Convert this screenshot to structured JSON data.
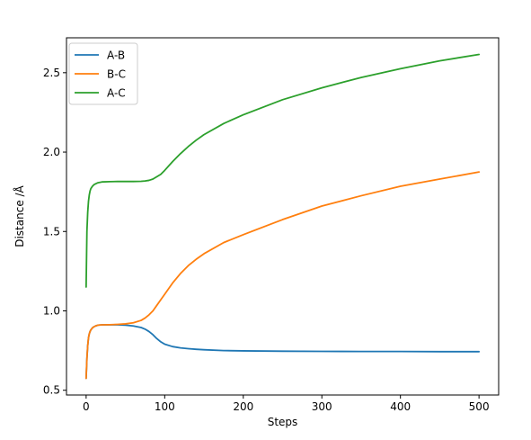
{
  "chart_data": {
    "type": "line",
    "xlabel": "Steps",
    "ylabel": "Distance /Å",
    "xlim": [
      -25,
      525
    ],
    "ylim": [
      0.47,
      2.72
    ],
    "xticks": [
      0,
      100,
      200,
      300,
      400,
      500
    ],
    "yticks": [
      0.5,
      1.0,
      1.5,
      2.0,
      2.5
    ],
    "xtick_labels": [
      "0",
      "100",
      "200",
      "300",
      "400",
      "500"
    ],
    "ytick_labels": [
      "0.5",
      "1.0",
      "1.5",
      "2.0",
      "2.5"
    ],
    "grid": false,
    "legend_position": "top-left",
    "series": [
      {
        "name": "A-B",
        "color": "#1f77b4",
        "x": [
          0,
          1,
          2,
          3,
          4,
          5,
          6,
          8,
          10,
          12,
          15,
          20,
          30,
          40,
          50,
          60,
          70,
          75,
          80,
          85,
          90,
          95,
          100,
          110,
          120,
          130,
          140,
          150,
          175,
          200,
          250,
          300,
          350,
          400,
          450,
          500
        ],
        "y": [
          0.575,
          0.7,
          0.78,
          0.83,
          0.855,
          0.87,
          0.88,
          0.893,
          0.9,
          0.905,
          0.91,
          0.912,
          0.913,
          0.912,
          0.91,
          0.905,
          0.895,
          0.885,
          0.87,
          0.85,
          0.825,
          0.805,
          0.79,
          0.775,
          0.767,
          0.762,
          0.758,
          0.755,
          0.75,
          0.748,
          0.746,
          0.745,
          0.744,
          0.744,
          0.743,
          0.743
        ]
      },
      {
        "name": "B-C",
        "color": "#ff7f0e",
        "x": [
          0,
          1,
          2,
          3,
          4,
          5,
          6,
          8,
          10,
          12,
          15,
          20,
          30,
          40,
          50,
          60,
          70,
          75,
          80,
          85,
          90,
          95,
          100,
          110,
          120,
          130,
          140,
          150,
          175,
          200,
          250,
          300,
          350,
          400,
          450,
          500
        ],
        "y": [
          0.575,
          0.7,
          0.78,
          0.83,
          0.855,
          0.87,
          0.88,
          0.893,
          0.9,
          0.905,
          0.91,
          0.912,
          0.913,
          0.915,
          0.918,
          0.925,
          0.94,
          0.955,
          0.975,
          1.0,
          1.035,
          1.07,
          1.105,
          1.175,
          1.235,
          1.285,
          1.325,
          1.36,
          1.43,
          1.48,
          1.575,
          1.66,
          1.725,
          1.785,
          1.83,
          1.875
        ]
      },
      {
        "name": "A-C",
        "color": "#2ca02c",
        "x": [
          0,
          1,
          2,
          3,
          4,
          5,
          6,
          8,
          10,
          12,
          15,
          20,
          30,
          40,
          50,
          60,
          70,
          75,
          80,
          85,
          90,
          95,
          100,
          110,
          120,
          130,
          140,
          150,
          175,
          200,
          250,
          300,
          350,
          400,
          450,
          500
        ],
        "y": [
          1.15,
          1.5,
          1.62,
          1.69,
          1.73,
          1.755,
          1.77,
          1.785,
          1.795,
          1.8,
          1.807,
          1.812,
          1.814,
          1.815,
          1.815,
          1.815,
          1.816,
          1.818,
          1.822,
          1.83,
          1.845,
          1.86,
          1.885,
          1.94,
          1.99,
          2.035,
          2.075,
          2.11,
          2.18,
          2.235,
          2.33,
          2.405,
          2.47,
          2.525,
          2.575,
          2.615
        ]
      }
    ]
  }
}
